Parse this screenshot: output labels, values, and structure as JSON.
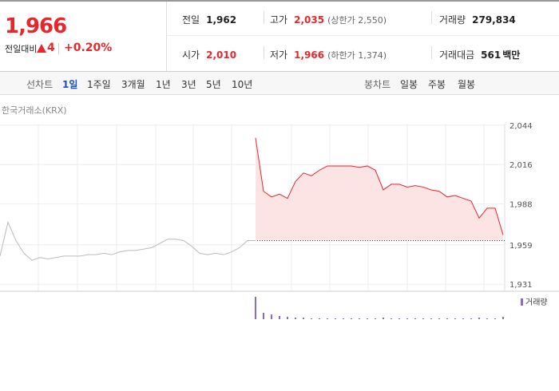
{
  "quote": {
    "price": "1,966",
    "change_label": "전일대비",
    "change": "4",
    "change_pct": "+0.20%"
  },
  "stats": [
    {
      "label": "전일",
      "value": "1,962"
    },
    {
      "label": "고가",
      "value": "2,035",
      "note": "(상한가 2,550)"
    },
    {
      "label": "거래량",
      "value": "279,834"
    },
    {
      "label": "시가",
      "value": "2,010"
    },
    {
      "label": "저가",
      "value": "1,966",
      "note": "(하한가 1,374)"
    },
    {
      "label": "거래대금",
      "value": "561",
      "unit": "백만"
    }
  ],
  "tabs": {
    "line_label": "선차트",
    "periods": [
      "1일",
      "1주일",
      "3개월",
      "1년",
      "3년",
      "5년",
      "10년"
    ],
    "candle_label": "봉차트",
    "candles": [
      "일봉",
      "주봉",
      "월봉"
    ]
  },
  "source": "한국거래소(KRX)",
  "chart_data": {
    "type": "line",
    "ylim": [
      1930,
      2045
    ],
    "yticks": [
      {
        "value": 1931,
        "label": "1,931"
      },
      {
        "value": 1959,
        "label": "1,959"
      },
      {
        "value": 1988,
        "label": "1,988"
      },
      {
        "value": 2016,
        "label": "2,016"
      },
      {
        "value": 2044,
        "label": "2,044"
      }
    ],
    "grid": true,
    "reference": 1962,
    "series": [
      {
        "color": "#bbbbbb",
        "values": [
          1951,
          1975,
          1962,
          1953,
          1948,
          1950,
          1949,
          1950,
          1951,
          1951,
          1951,
          1952,
          1952,
          1953,
          1952,
          1954,
          1955,
          1955,
          1956,
          1957,
          1960,
          1963,
          1963,
          1962,
          1958,
          1953,
          1952,
          1953,
          1952,
          1954,
          1957,
          1962,
          1962,
          null,
          null,
          null,
          null,
          null,
          null,
          null,
          null,
          null,
          null,
          null,
          null,
          null,
          null,
          null,
          null,
          null,
          null,
          null,
          null,
          null,
          null,
          null,
          null,
          null,
          null,
          null,
          null,
          null,
          null,
          null
        ]
      },
      {
        "color": "#e8262b",
        "fill": "#fde4e4",
        "values": [
          null,
          null,
          null,
          null,
          null,
          null,
          null,
          null,
          null,
          null,
          null,
          null,
          null,
          null,
          null,
          null,
          null,
          null,
          null,
          null,
          null,
          null,
          null,
          null,
          null,
          null,
          null,
          null,
          null,
          null,
          null,
          null,
          2035,
          1997,
          1993,
          1995,
          1992,
          2004,
          2010,
          2008,
          2012,
          2015,
          2015,
          2015,
          2015,
          2014,
          2015,
          2012,
          1998,
          2002,
          2002,
          2000,
          2001,
          2000,
          1998,
          1997,
          1993,
          1994,
          1992,
          1990,
          1978,
          1985,
          1985,
          1966
        ]
      }
    ],
    "volume": {
      "name": "거래량",
      "color": "#8a6ac8",
      "ylim": [
        0,
        30
      ],
      "values": [
        null,
        null,
        null,
        null,
        null,
        null,
        null,
        null,
        null,
        null,
        null,
        null,
        null,
        null,
        null,
        null,
        null,
        null,
        null,
        null,
        null,
        null,
        null,
        null,
        null,
        null,
        null,
        null,
        null,
        null,
        null,
        null,
        28,
        8,
        6,
        4,
        3,
        2,
        2,
        1,
        1,
        1,
        1,
        1,
        1,
        1,
        1,
        1,
        2,
        1,
        1,
        1,
        1,
        1,
        1,
        1,
        1,
        1,
        1,
        1,
        2,
        1,
        1,
        3
      ]
    }
  }
}
